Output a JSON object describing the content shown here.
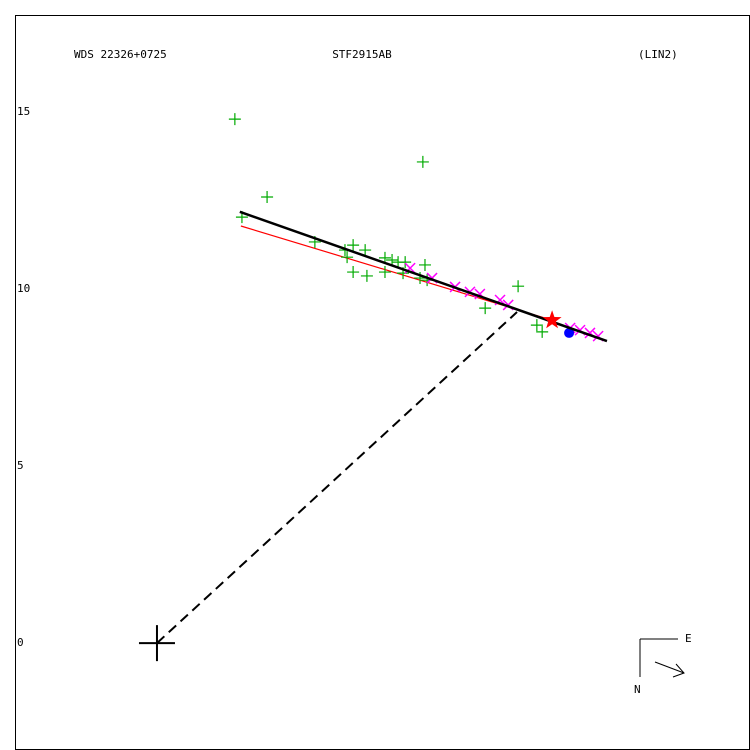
{
  "chart_data": {
    "type": "scatter",
    "title": "WDS 22326+0725",
    "subtitle": "STF2915AB",
    "annotation": "(LIN2)",
    "xlim": [
      -4.01,
      16.75
    ],
    "ylim": [
      -3.02,
      17.74
    ],
    "yticks": [
      0,
      5,
      10,
      15
    ],
    "compass": {
      "east": "E",
      "north": "N"
    },
    "series": [
      {
        "marker": "line",
        "color": "#ff0000",
        "x": [
          2.37,
          11.16
        ],
        "y": [
          11.78,
          9.12
        ]
      },
      {
        "marker": "dashed",
        "color": "#000000",
        "x": [
          0,
          10.17
        ],
        "y": [
          0,
          9.35
        ]
      },
      {
        "marker": "plus",
        "color": "#00aa00",
        "x": [
          2.2,
          3.11,
          2.4,
          4.46,
          5.31,
          5.37,
          5.54,
          5.54,
          5.93,
          5.88,
          6.44,
          6.44,
          6.64,
          6.81,
          6.95,
          7.01,
          7.43,
          7.57,
          7.63,
          7.51,
          10.2,
          9.27,
          10.73,
          10.88
        ],
        "y": [
          14.8,
          12.6,
          12.03,
          11.33,
          11.1,
          10.9,
          11.24,
          10.48,
          10.37,
          11.1,
          10.88,
          10.48,
          10.82,
          10.76,
          10.45,
          10.76,
          10.31,
          10.68,
          10.25,
          13.59,
          10.08,
          9.46,
          8.98,
          8.79
        ]
      },
      {
        "marker": "x",
        "color": "#ff00ff",
        "x": [
          7.15,
          7.77,
          8.42,
          8.84,
          9.12,
          9.69,
          9.92,
          11.67,
          11.95,
          12.23,
          12.46
        ],
        "y": [
          10.59,
          10.31,
          10.06,
          9.92,
          9.86,
          9.69,
          9.55,
          8.9,
          8.84,
          8.76,
          8.67
        ]
      },
      {
        "marker": "dot",
        "color": "#0000ff",
        "x": [
          11.64
        ],
        "y": [
          8.76
        ]
      },
      {
        "marker": "line",
        "color": "#000000",
        "x": [
          2.34,
          12.71
        ],
        "y": [
          12.18,
          8.53
        ]
      },
      {
        "marker": "star",
        "color": "#ff0000",
        "x": [
          11.16
        ],
        "y": [
          9.12
        ]
      },
      {
        "marker": "origin",
        "color": "#000000",
        "x": [
          0
        ],
        "y": [
          0
        ]
      }
    ]
  }
}
